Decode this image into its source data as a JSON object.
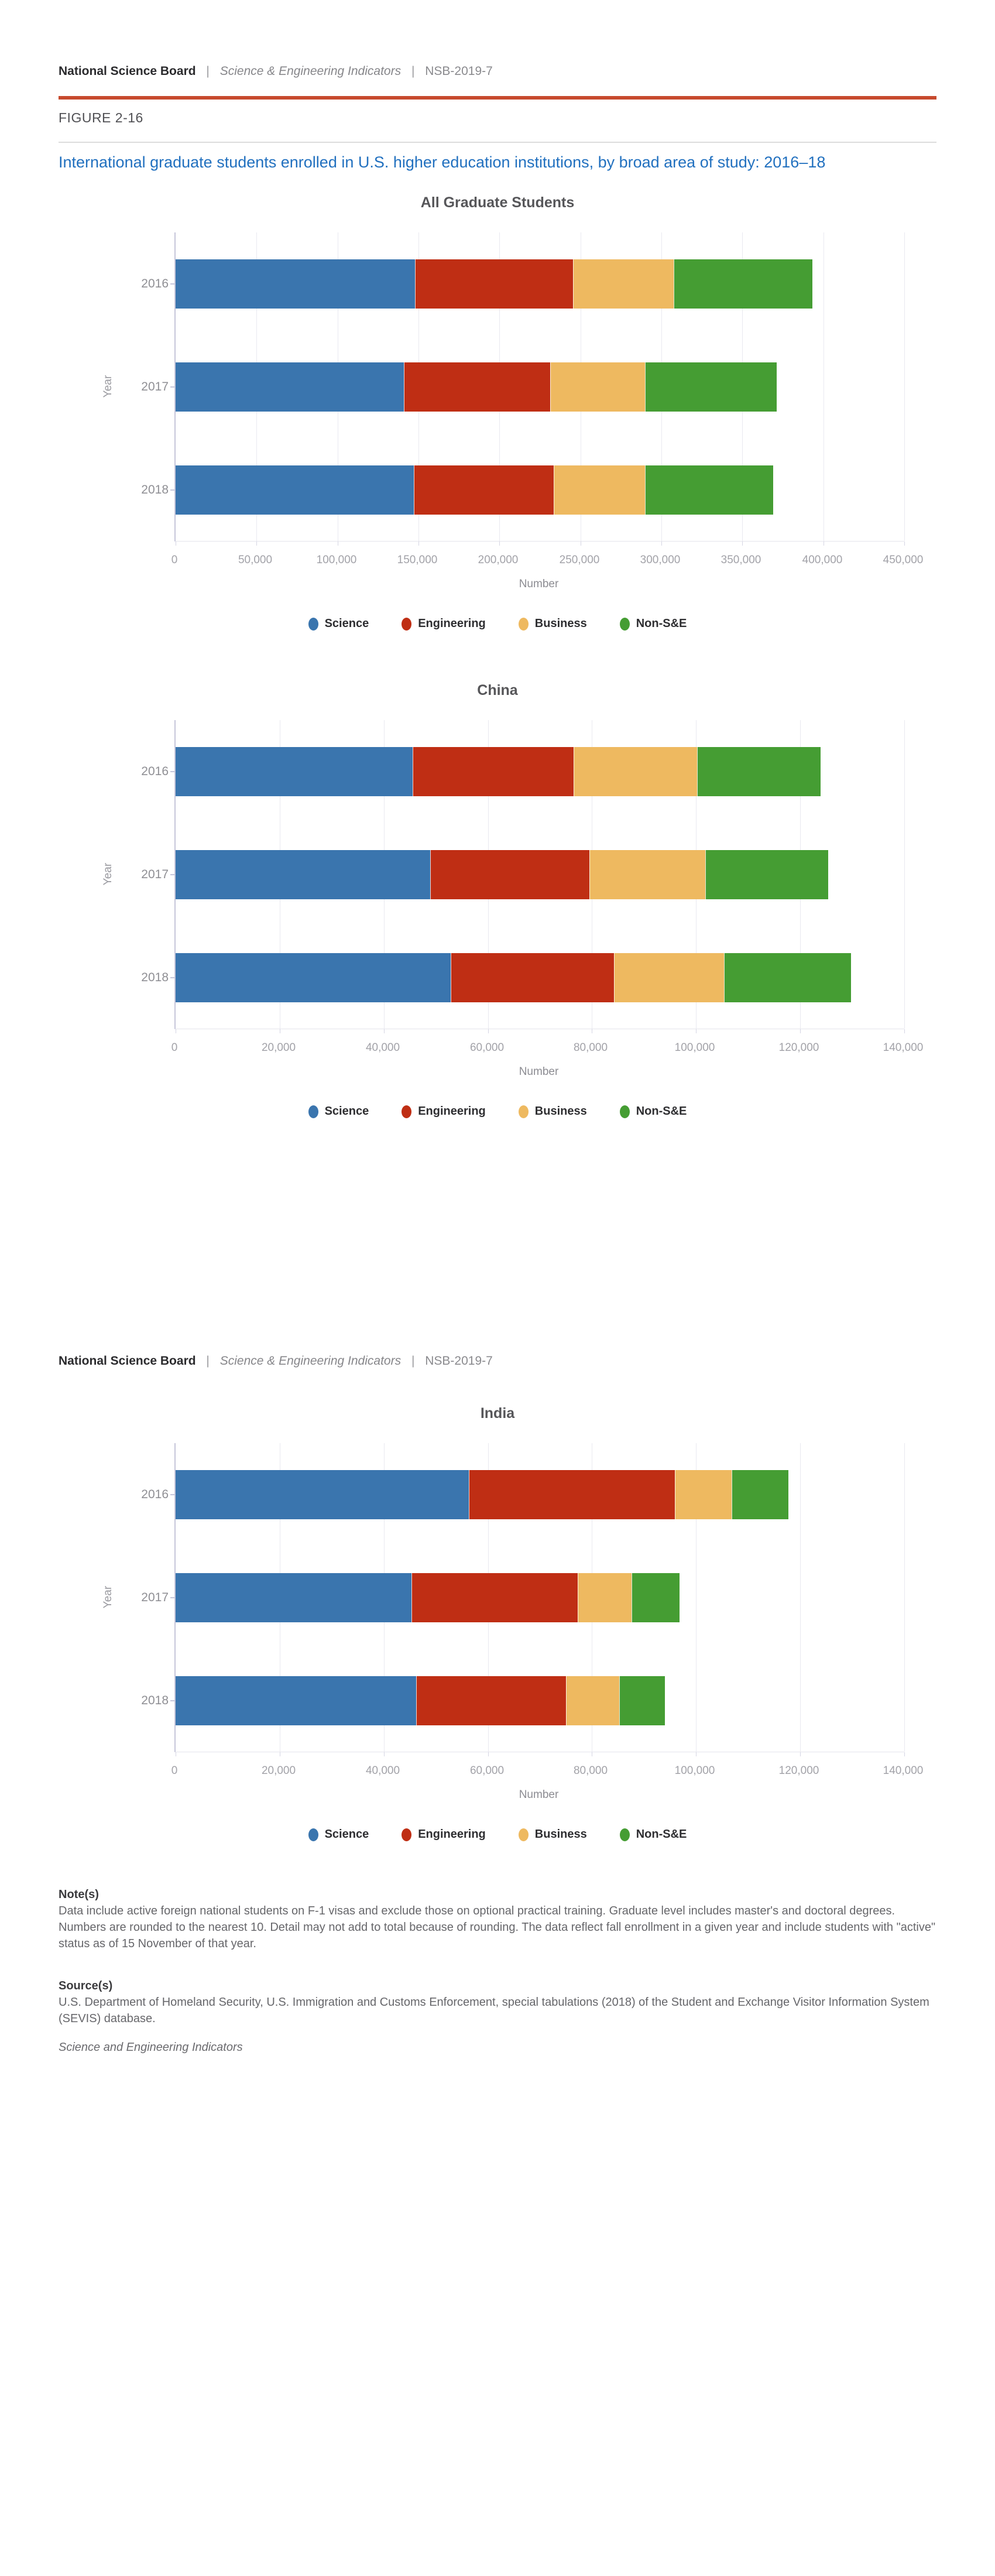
{
  "header": {
    "brand": "National Science Board",
    "divider": "|",
    "publication": "Science & Engineering Indicators",
    "report_id": "NSB-2019-7"
  },
  "figure": {
    "label": "FIGURE 2-16",
    "title": "International graduate students enrolled in U.S. higher education institutions, by broad area of study: 2016–18"
  },
  "notes": {
    "heading": "Note(s)",
    "body": "Data include active foreign national students on F-1 visas and exclude those on optional practical training. Graduate level includes master's and doctoral degrees. Numbers are rounded to the nearest 10. Detail may not add to total because of rounding. The data reflect fall enrollment in a given year and include students with \"active\" status as of 15 November of that year."
  },
  "sources": {
    "heading": "Source(s)",
    "body": "U.S. Department of Homeland Security, U.S. Immigration and Customs Enforcement, special tabulations (2018) of the Student and Exchange Visitor Information System (SEVIS) database."
  },
  "footer_note": "Science and Engineering Indicators",
  "colors": {
    "accent_rule": "#c74a2e",
    "title_blue": "#2170bf",
    "science": "#3a75ae",
    "engineering": "#bf2e14",
    "business": "#eeb960",
    "non_se": "#459d33"
  },
  "chart_data": [
    {
      "type": "bar",
      "stacked": true,
      "orientation": "horizontal",
      "title": "All Graduate Students",
      "ylabel": "Year",
      "xlabel": "Number",
      "categories": [
        "2016",
        "2017",
        "2018"
      ],
      "series": [
        {
          "name": "Science",
          "color_key": "science",
          "values": [
            148000,
            141000,
            147000
          ]
        },
        {
          "name": "Engineering",
          "color_key": "engineering",
          "values": [
            97000,
            90000,
            86000
          ]
        },
        {
          "name": "Business",
          "color_key": "business",
          "values": [
            62000,
            58000,
            56000
          ]
        },
        {
          "name": "Non-S&E",
          "color_key": "non_se",
          "values": [
            85000,
            81000,
            79000
          ]
        }
      ],
      "xlim": [
        0,
        450000
      ],
      "xticks": [
        "0",
        "50,000",
        "100,000",
        "150,000",
        "200,000",
        "250,000",
        "300,000",
        "350,000",
        "400,000",
        "450,000"
      ],
      "legend": [
        "Science",
        "Engineering",
        "Business",
        "Non-S&E"
      ],
      "legend_position": "bottom",
      "grid": true
    },
    {
      "type": "bar",
      "stacked": true,
      "orientation": "horizontal",
      "title": "China",
      "ylabel": "Year",
      "xlabel": "Number",
      "categories": [
        "2016",
        "2017",
        "2018"
      ],
      "series": [
        {
          "name": "Science",
          "color_key": "science",
          "values": [
            45500,
            48900,
            52900
          ]
        },
        {
          "name": "Engineering",
          "color_key": "engineering",
          "values": [
            30900,
            30500,
            31200
          ]
        },
        {
          "name": "Business",
          "color_key": "business",
          "values": [
            23600,
            22200,
            21000
          ]
        },
        {
          "name": "Non-S&E",
          "color_key": "non_se",
          "values": [
            23600,
            23400,
            24300
          ]
        }
      ],
      "xlim": [
        0,
        140000
      ],
      "xticks": [
        "0",
        "20,000",
        "40,000",
        "60,000",
        "80,000",
        "100,000",
        "120,000",
        "140,000"
      ],
      "legend": [
        "Science",
        "Engineering",
        "Business",
        "Non-S&E"
      ],
      "legend_position": "bottom",
      "grid": true
    },
    {
      "type": "bar",
      "stacked": true,
      "orientation": "horizontal",
      "title": "India",
      "ylabel": "Year",
      "xlabel": "Number",
      "categories": [
        "2016",
        "2017",
        "2018"
      ],
      "series": [
        {
          "name": "Science",
          "color_key": "science",
          "values": [
            56300,
            45300,
            46200
          ]
        },
        {
          "name": "Engineering",
          "color_key": "engineering",
          "values": [
            39500,
            31800,
            28700
          ]
        },
        {
          "name": "Business",
          "color_key": "business",
          "values": [
            10800,
            10300,
            10100
          ]
        },
        {
          "name": "Non-S&E",
          "color_key": "non_se",
          "values": [
            10800,
            9100,
            8700
          ]
        }
      ],
      "xlim": [
        0,
        140000
      ],
      "xticks": [
        "0",
        "20,000",
        "40,000",
        "60,000",
        "80,000",
        "100,000",
        "120,000",
        "140,000"
      ],
      "legend": [
        "Science",
        "Engineering",
        "Business",
        "Non-S&E"
      ],
      "legend_position": "bottom",
      "grid": true
    }
  ]
}
